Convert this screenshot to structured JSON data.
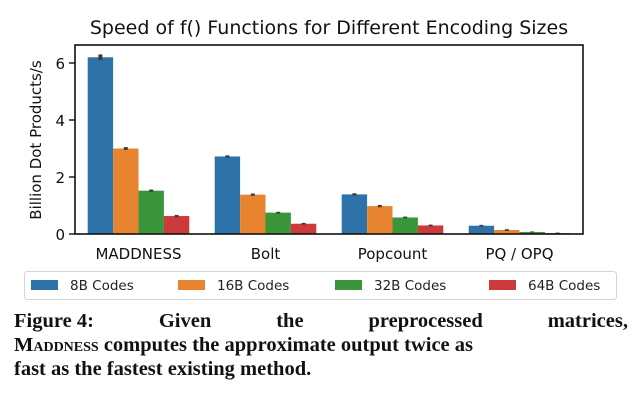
{
  "chart_data": {
    "type": "bar",
    "title": "Speed of f() Functions for Different Encoding Sizes",
    "xlabel": "",
    "ylabel": "Billion Dot Products/s",
    "ylim": [
      0,
      6.6
    ],
    "yticks": [
      0,
      2,
      4,
      6
    ],
    "grid": false,
    "legend_position": "bottom",
    "categories": [
      "MADDNESS",
      "Bolt",
      "Popcount",
      "PQ / OPQ"
    ],
    "series": [
      {
        "name": "8B Codes",
        "color": "#2d72a8",
        "values": [
          6.2,
          2.72,
          1.39,
          0.29
        ],
        "err": [
          0.1,
          0.04,
          0.04,
          0.03
        ]
      },
      {
        "name": "16B Codes",
        "color": "#e88430",
        "values": [
          3.0,
          1.38,
          0.98,
          0.14
        ],
        "err": [
          0.05,
          0.04,
          0.04,
          0.03
        ]
      },
      {
        "name": "32B Codes",
        "color": "#3b963b",
        "values": [
          1.52,
          0.75,
          0.58,
          0.07
        ],
        "err": [
          0.04,
          0.03,
          0.03,
          0.02
        ]
      },
      {
        "name": "64B Codes",
        "color": "#cc3a3c",
        "values": [
          0.63,
          0.36,
          0.3,
          0.03
        ],
        "err": [
          0.04,
          0.03,
          0.03,
          0.02
        ]
      }
    ],
    "errorbar_color": "#3a3a3a"
  },
  "caption": {
    "label": "Figure 4:",
    "line1_words": [
      "Given",
      "the",
      "preprocessed",
      "matrices,"
    ],
    "method_name": "Maddness",
    "line2_rest": " computes the approximate output twice as",
    "line3": "fast as the fastest existing method."
  }
}
